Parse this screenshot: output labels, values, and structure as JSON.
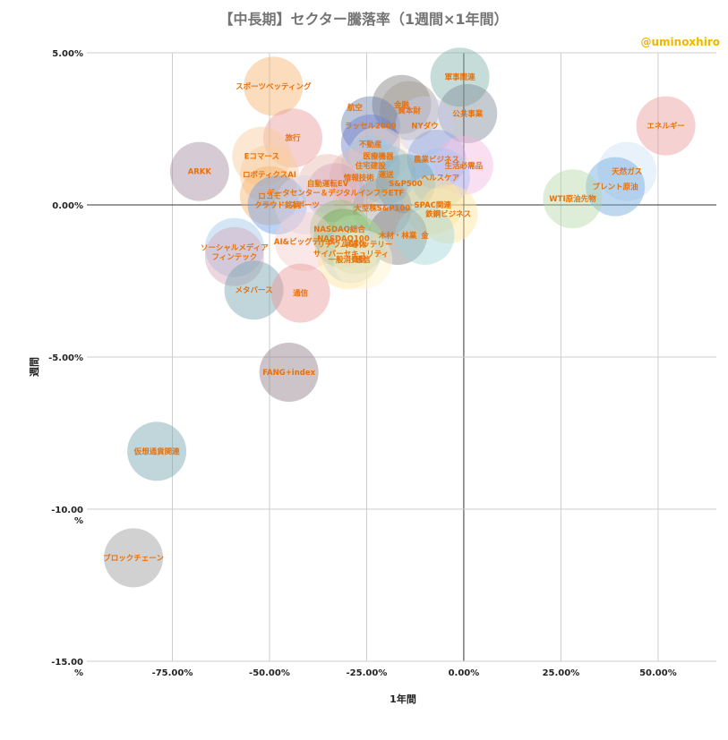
{
  "chart_data": {
    "type": "scatter",
    "title": "【中長期】セクター騰落率（1週間×1年間）",
    "credit": "@uminoxhiro",
    "xlabel": "1年間",
    "ylabel": "週間",
    "xlim": [
      -97,
      65
    ],
    "ylim": [
      -15,
      5
    ],
    "x_ticks": [
      {
        "v": -75,
        "label": "-75.00%"
      },
      {
        "v": -50,
        "label": "-50.00%"
      },
      {
        "v": -25,
        "label": "-25.00%"
      },
      {
        "v": 0,
        "label": "0.00%"
      },
      {
        "v": 25,
        "label": "25.00%"
      },
      {
        "v": 50,
        "label": "50.00%"
      }
    ],
    "y_ticks": [
      {
        "v": 5,
        "label": "5.00%"
      },
      {
        "v": 0,
        "label": "0.00%"
      },
      {
        "v": -5,
        "label": "-5.00%"
      },
      {
        "v": -10,
        "label": "-10.00 %"
      },
      {
        "v": -15,
        "label": "-15.00 %"
      }
    ],
    "points": [
      {
        "label": "軍事関連",
        "x": -1,
        "y": 4.2,
        "color": "#80b1a8"
      },
      {
        "label": "スポーツベッティング",
        "x": -49,
        "y": 3.9,
        "color": "#f6b26b"
      },
      {
        "label": "航空",
        "x": -28,
        "y": 3.2,
        "color": "#ffffff"
      },
      {
        "label": "金融",
        "x": -16,
        "y": 3.3,
        "color": "#7f7f7f"
      },
      {
        "label": "資本財",
        "x": -14,
        "y": 3.1,
        "color": "#a39e93"
      },
      {
        "label": "公共事業",
        "x": 1,
        "y": 3.0,
        "color": "#7f8c9a"
      },
      {
        "label": "エネルギー",
        "x": 52,
        "y": 2.6,
        "color": "#ea9999"
      },
      {
        "label": "ラッセル2000",
        "x": -24,
        "y": 2.6,
        "color": "#6d7fa8"
      },
      {
        "label": "NYダウ",
        "x": -10,
        "y": 2.6,
        "color": "#c9c9e8"
      },
      {
        "label": "旅行",
        "x": -44,
        "y": 2.2,
        "color": "#ea9999"
      },
      {
        "label": "不動産",
        "x": -24,
        "y": 2.0,
        "color": "#6d7fd0"
      },
      {
        "label": "Eコマース",
        "x": -52,
        "y": 1.6,
        "color": "#f9cb9c"
      },
      {
        "label": "医療機器",
        "x": -22,
        "y": 1.6,
        "color": "#fce5cd"
      },
      {
        "label": "農業ビジネス",
        "x": -7,
        "y": 1.5,
        "color": "#8fa3d8"
      },
      {
        "label": "住宅建設",
        "x": -24,
        "y": 1.3,
        "color": "#9fc5e8"
      },
      {
        "label": "生活必需品",
        "x": 0,
        "y": 1.3,
        "color": "#f4b6e2"
      },
      {
        "label": "ARKK",
        "x": -68,
        "y": 1.1,
        "color": "#a48ba0"
      },
      {
        "label": "天然ガス",
        "x": 42,
        "y": 1.1,
        "color": "#cfe2f3"
      },
      {
        "label": "ロボティクスAI",
        "x": -50,
        "y": 1.0,
        "color": "#f9cb9c"
      },
      {
        "label": "ヘルスケア",
        "x": -6,
        "y": 0.9,
        "color": "#a4c2f4"
      },
      {
        "label": "情報技術",
        "x": -27,
        "y": 0.9,
        "color": "#e6b8af"
      },
      {
        "label": "運送",
        "x": -20,
        "y": 1.0,
        "color": "#a2c4c9"
      },
      {
        "label": "ブレント原油",
        "x": 39,
        "y": 0.6,
        "color": "#6fa8dc"
      },
      {
        "label": "自動運転EV",
        "x": -35,
        "y": 0.7,
        "color": "#e6b8af"
      },
      {
        "label": "S&P500",
        "x": -15,
        "y": 0.7,
        "color": "#76a5af"
      },
      {
        "label": "ロコモ",
        "x": -50,
        "y": 0.3,
        "color": "#f6b26b"
      },
      {
        "label": "データセンター＆デジタルインフラETF",
        "x": -33,
        "y": 0.4,
        "color": "#d5a6bd"
      },
      {
        "label": "WTI原油先物",
        "x": 28,
        "y": 0.2,
        "color": "#b6d7a8"
      },
      {
        "label": "クラウド銘柄",
        "x": -48,
        "y": 0.0,
        "color": "#6d9eeb"
      },
      {
        "label": "スポーツ",
        "x": -41,
        "y": 0.0,
        "color": "#d9d2e9"
      },
      {
        "label": "SPAC関連",
        "x": -8,
        "y": 0.0,
        "color": "#ffe599"
      },
      {
        "label": "大型株S&P100",
        "x": -21,
        "y": -0.1,
        "color": "#a5a5a5"
      },
      {
        "label": "鉄鋼ビジネス",
        "x": -4,
        "y": -0.3,
        "color": "#ffe599"
      },
      {
        "label": "NASDAQ総合",
        "x": -32,
        "y": -0.8,
        "color": "#93c47d"
      },
      {
        "label": "木材・林業",
        "x": -17,
        "y": -1.0,
        "color": "#7f7f7f"
      },
      {
        "label": "金",
        "x": -10,
        "y": -1.0,
        "color": "#a2d4d9"
      },
      {
        "label": "NASDAQ100",
        "x": -31,
        "y": -1.1,
        "color": "#6aa84f"
      },
      {
        "label": "AI&ビッグデータ",
        "x": -41,
        "y": -1.2,
        "color": "#f4cccc"
      },
      {
        "label": "半導体",
        "x": -28,
        "y": -1.3,
        "color": "#93c47d"
      },
      {
        "label": "リチウム&バッテリー",
        "x": -28,
        "y": -1.3,
        "color": "#b6d7a8"
      },
      {
        "label": "ソーシャルメディア",
        "x": -59,
        "y": -1.4,
        "color": "#9fc5e8"
      },
      {
        "label": "サイバーセキュリティ",
        "x": -29,
        "y": -1.6,
        "color": "#a4c2f4"
      },
      {
        "label": "フィンテック",
        "x": -59,
        "y": -1.7,
        "color": "#d5a6bd"
      },
      {
        "label": "一般消費財",
        "x": -30,
        "y": -1.8,
        "color": "#ffe599"
      },
      {
        "label": "通信",
        "x": -26,
        "y": -1.8,
        "color": "#fff2cc"
      },
      {
        "label": "メタバース",
        "x": -54,
        "y": -2.8,
        "color": "#76a5af"
      },
      {
        "label": "通信",
        "x": -42,
        "y": -2.9,
        "color": "#ea9999"
      },
      {
        "label": "FANG+index",
        "x": -45,
        "y": -5.5,
        "color": "#8e7c86"
      },
      {
        "label": "仮想通貨関連",
        "x": -79,
        "y": -8.1,
        "color": "#76a5af"
      },
      {
        "label": "ブロックチェーン",
        "x": -85,
        "y": -11.6,
        "color": "#999999"
      }
    ]
  }
}
